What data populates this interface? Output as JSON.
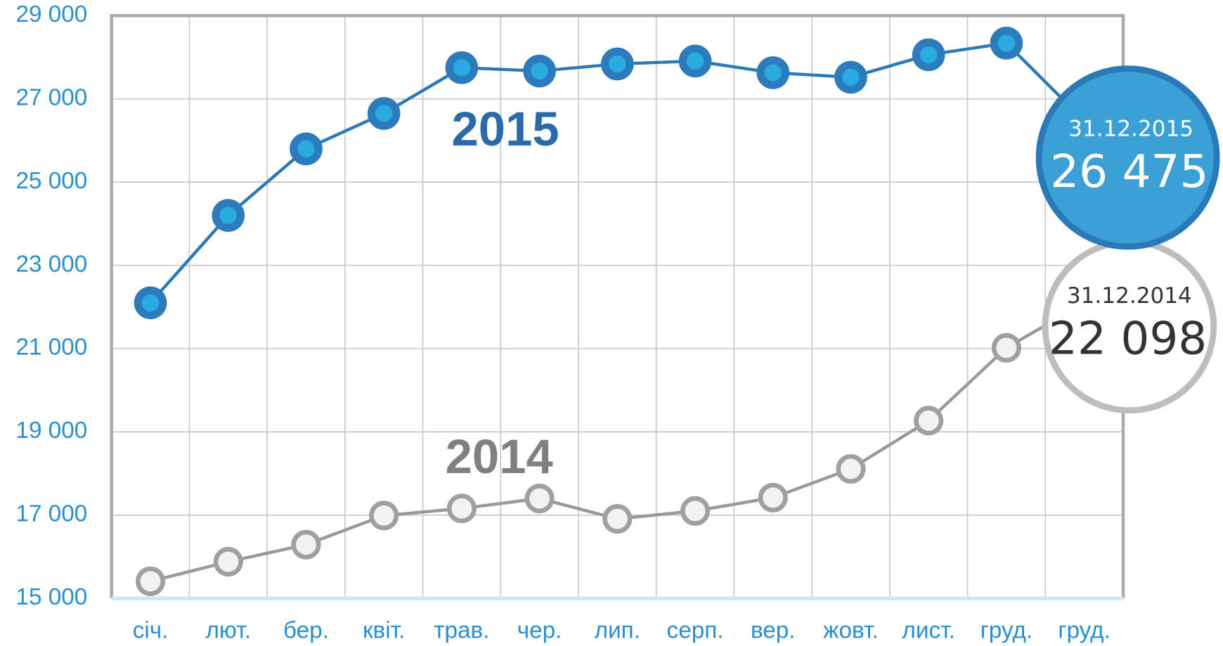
{
  "chart_data": {
    "type": "line",
    "categories": [
      "січ.",
      "лют.",
      "бер.",
      "квіт.",
      "трав.",
      "чер.",
      "лип.",
      "серп.",
      "вер.",
      "жовт.",
      "лист.",
      "груд.",
      "груд."
    ],
    "series": [
      {
        "name": "2015",
        "color": "#2a7ab8",
        "marker_fill": "#29abe2",
        "values": [
          22100,
          24200,
          25800,
          26650,
          27750,
          27670,
          27840,
          27910,
          27630,
          27520,
          28060,
          28340,
          26475
        ],
        "callout": {
          "date": "31.12.2015",
          "value_label": "26 475"
        }
      },
      {
        "name": "2014",
        "color": "#999999",
        "marker_fill": "#f2f2f2",
        "values": [
          15410,
          15880,
          16290,
          16990,
          17160,
          17400,
          16910,
          17100,
          17420,
          18110,
          19270,
          21020,
          22098
        ],
        "callout": {
          "date": "31.12.2014",
          "value_label": "22 098"
        }
      }
    ],
    "ylim": [
      15000,
      29000
    ],
    "yticks": [
      {
        "value": 15000,
        "label": "15 000"
      },
      {
        "value": 17000,
        "label": "17 000"
      },
      {
        "value": 19000,
        "label": "19 000"
      },
      {
        "value": 21000,
        "label": "21 000"
      },
      {
        "value": 23000,
        "label": "23 000"
      },
      {
        "value": 25000,
        "label": "25 000"
      },
      {
        "value": 27000,
        "label": "27 000"
      },
      {
        "value": 29000,
        "label": "29 000"
      }
    ],
    "grid": true
  }
}
